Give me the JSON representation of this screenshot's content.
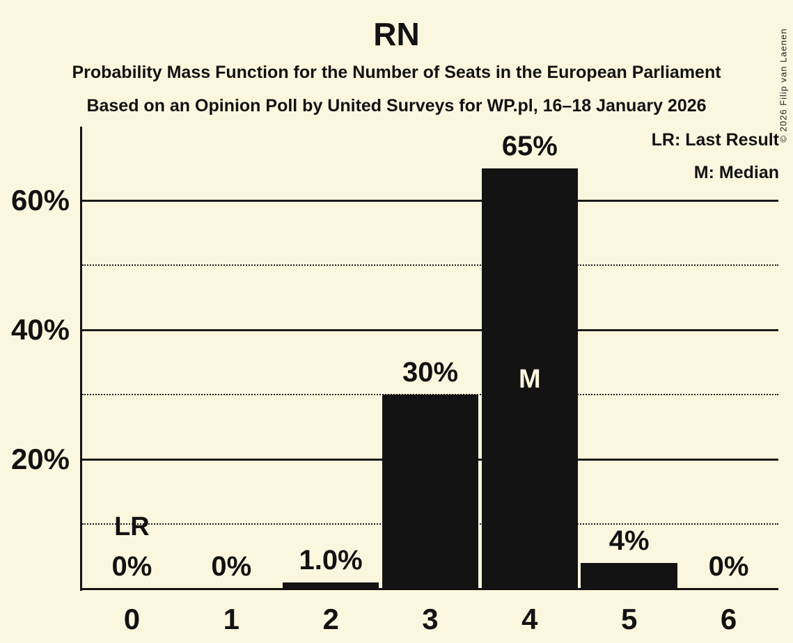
{
  "title": "RN",
  "subtitle1": "Probability Mass Function for the Number of Seats in the European Parliament",
  "subtitle2": "Based on an Opinion Poll by United Surveys for WP.pl, 16–18 January 2026",
  "copyright": "© 2026 Filip van Laenen",
  "legend": {
    "lr": "LR: Last Result",
    "m": "M: Median"
  },
  "colors": {
    "background": "#FBF7DF",
    "bar": "#131313",
    "ink": "#121212",
    "median_text": "#FBF7DF"
  },
  "chart_data": {
    "type": "bar",
    "title": "RN",
    "xlabel": "Number of Seats",
    "ylabel": "Probability",
    "categories": [
      "0",
      "1",
      "2",
      "3",
      "4",
      "5",
      "6"
    ],
    "values": [
      0,
      0,
      1.0,
      30,
      65,
      4,
      0
    ],
    "bar_labels": [
      "0%",
      "0%",
      "1.0%",
      "30%",
      "65%",
      "4%",
      "0%"
    ],
    "annotations": {
      "last_result_label": "LR",
      "last_result_category_index": 0,
      "median_label": "M",
      "median_category_index": 4
    },
    "ylim": [
      0,
      71.4
    ],
    "yticks": [
      {
        "value": 20,
        "label": "20%"
      },
      {
        "value": 40,
        "label": "40%"
      },
      {
        "value": 60,
        "label": "60%"
      }
    ],
    "solid_gridlines": [
      20,
      40,
      60
    ],
    "dotted_gridlines": [
      10,
      30,
      50
    ],
    "grid": true,
    "legend_position": "top-right"
  }
}
